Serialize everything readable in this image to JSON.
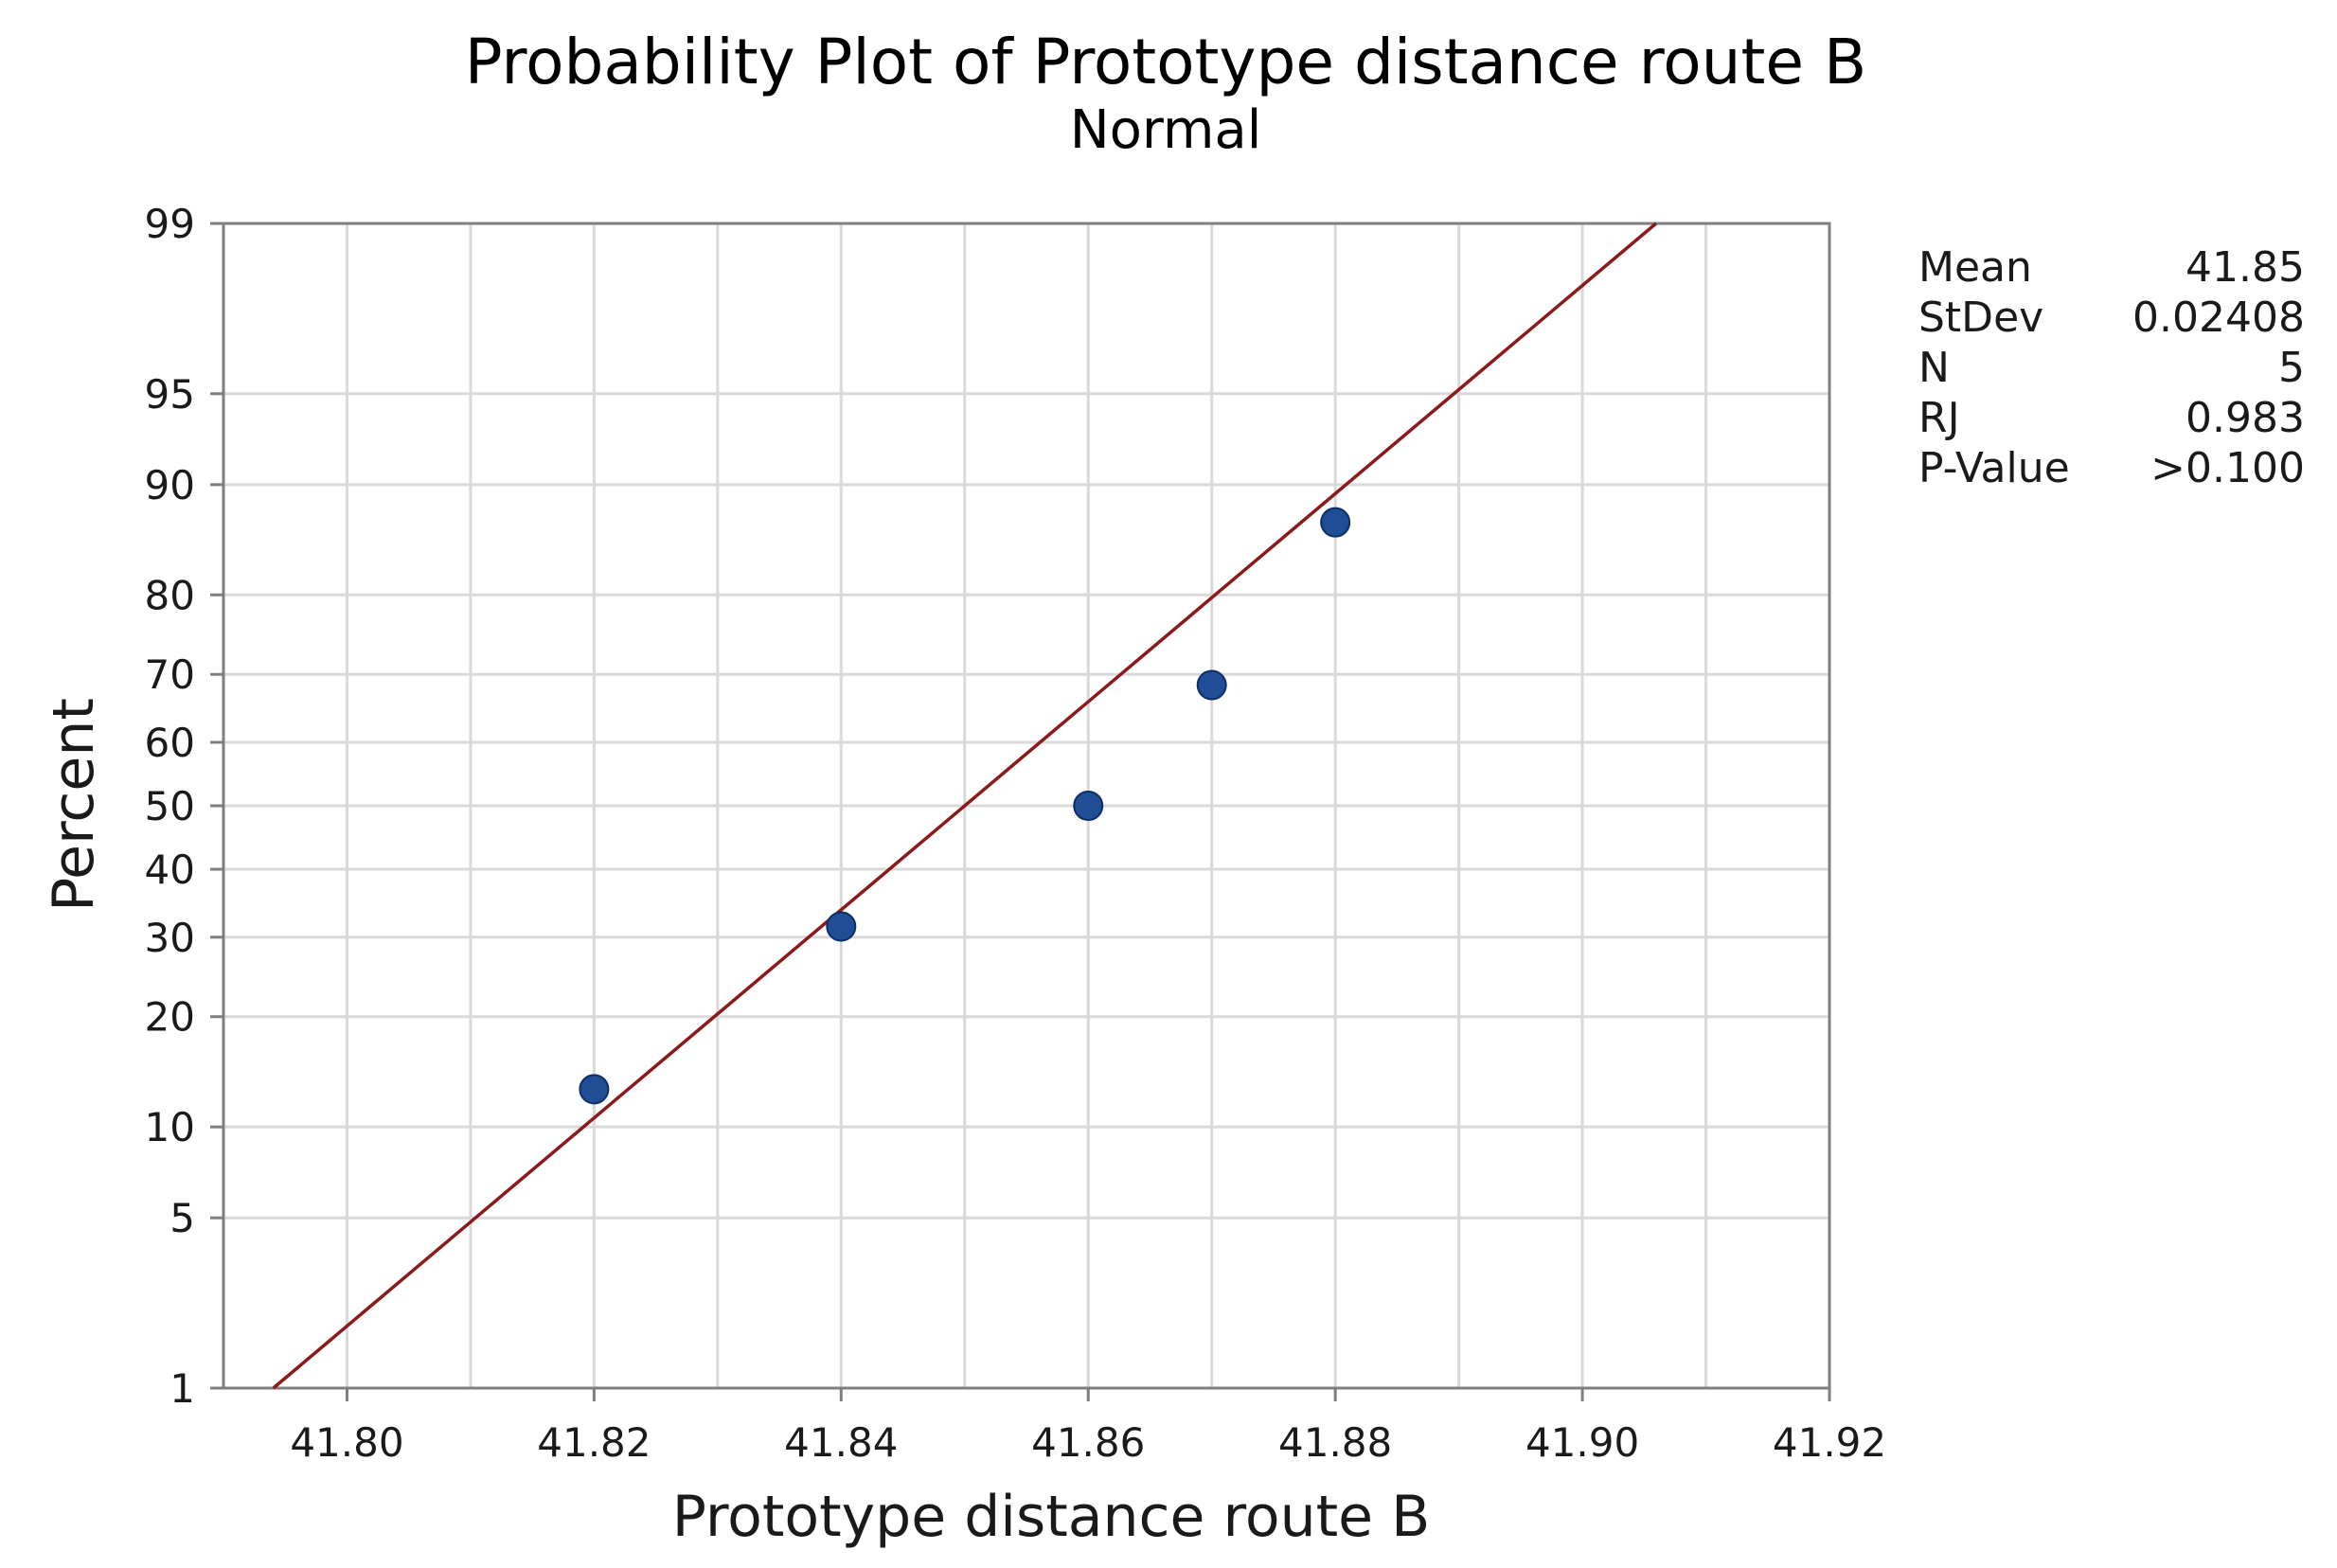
{
  "chart_data": {
    "type": "scatter",
    "title": "Probability Plot of Prototype distance route B",
    "subtitle": "Normal",
    "xlabel": "Prototype distance route B",
    "ylabel": "Percent",
    "xlim": [
      41.79,
      41.92
    ],
    "x_ticks": [
      "41.80",
      "41.82",
      "41.84",
      "41.86",
      "41.88",
      "41.90",
      "41.92"
    ],
    "y_scale": "normal-probability",
    "ylim": [
      1,
      99
    ],
    "y_ticks": [
      "1",
      "5",
      "10",
      "20",
      "30",
      "40",
      "50",
      "60",
      "70",
      "80",
      "90",
      "95",
      "99"
    ],
    "grid": true,
    "points": [
      {
        "x": 41.82,
        "y": 12.9
      },
      {
        "x": 41.84,
        "y": 31.5
      },
      {
        "x": 41.86,
        "y": 50.0
      },
      {
        "x": 41.87,
        "y": 68.5
      },
      {
        "x": 41.88,
        "y": 87.1
      }
    ],
    "fit_line": {
      "mean": 41.85,
      "stdev": 0.02408
    },
    "colors": {
      "points": "#1f4e96",
      "fit_line": "#8b1a1a",
      "grid": "#d9d9d9"
    },
    "stats": [
      {
        "label": "Mean",
        "value": "41.85"
      },
      {
        "label": "StDev",
        "value": "0.02408"
      },
      {
        "label": "N",
        "value": "5"
      },
      {
        "label": "RJ",
        "value": "0.983"
      },
      {
        "label": "P-Value",
        "value": ">0.100"
      }
    ]
  }
}
